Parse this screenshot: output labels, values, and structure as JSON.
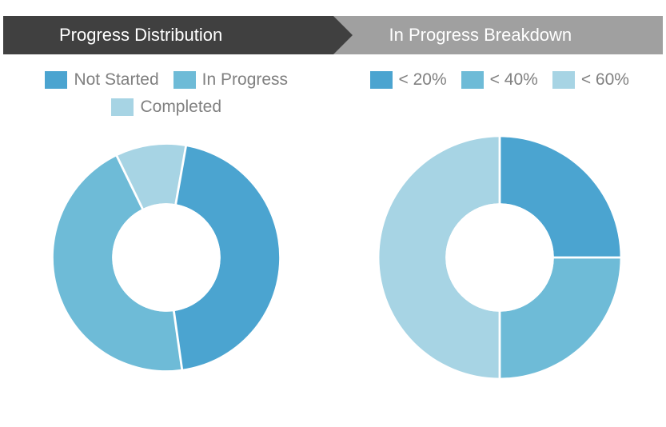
{
  "background_color": "#ffffff",
  "header": {
    "left": {
      "label": "Progress Distribution",
      "bg": "#404040",
      "color": "#ffffff"
    },
    "right": {
      "label": "In Progress Breakdown",
      "bg": "#a0a0a0",
      "color": "#ffffff"
    },
    "font_size": 22
  },
  "legend_style": {
    "swatch_w": 28,
    "swatch_h": 22,
    "label_color": "#808080",
    "label_fontsize": 21
  },
  "left_chart": {
    "type": "donut",
    "slices": [
      {
        "label": "Not Started",
        "value": 45,
        "color": "#4ba4d0"
      },
      {
        "label": "In Progress",
        "value": 45,
        "color": "#6ebbd7"
      },
      {
        "label": "Completed",
        "value": 10,
        "color": "#a7d4e4"
      }
    ],
    "rotation_deg": 10,
    "outer_r": 150,
    "inner_r": 72,
    "gap_color": "#ffffff",
    "gap_width": 3
  },
  "right_chart": {
    "type": "donut",
    "slices": [
      {
        "label": "< 20%",
        "value": 25,
        "color": "#4ba4d0"
      },
      {
        "label": "< 40%",
        "value": 25,
        "color": "#6ebbd7"
      },
      {
        "label": "< 60%",
        "value": 50,
        "color": "#a7d4e4"
      }
    ],
    "rotation_deg": 0,
    "outer_r": 160,
    "inner_r": 72,
    "gap_color": "#ffffff",
    "gap_width": 3
  }
}
